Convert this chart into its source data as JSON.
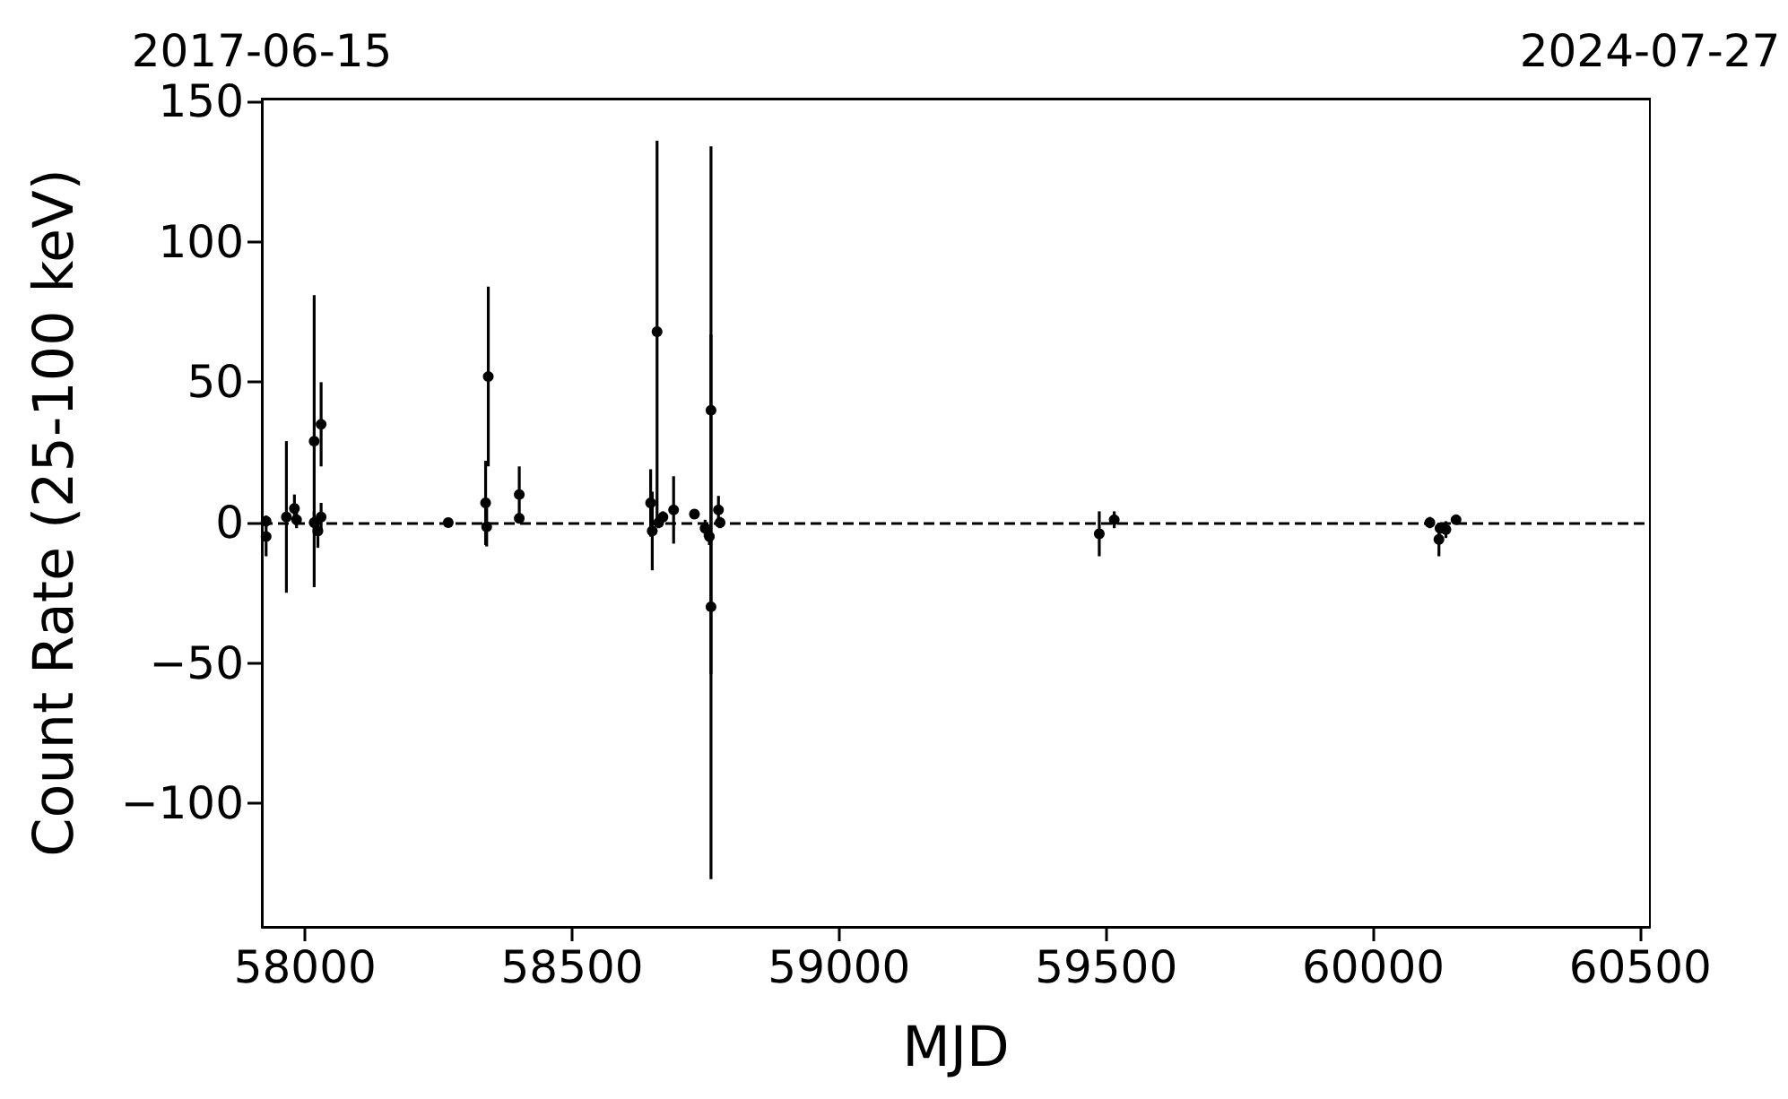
{
  "chart_data": {
    "type": "scatter",
    "xlabel": "MJD",
    "ylabel": "Count Rate (25-100 keV)",
    "xlim": [
      57919,
      60518
    ],
    "xticks": [
      58000,
      58500,
      59000,
      59500,
      60000,
      60500
    ],
    "x2lim": [
      "2017-06-15",
      "2024-07-27"
    ],
    "x2ticks": [
      "2017-06-15",
      "2024-07-27"
    ],
    "ylim": [
      -144,
      151
    ],
    "yticks": [
      {
        "value": -100,
        "label": "−100"
      },
      {
        "value": -50,
        "label": "−50"
      },
      0,
      50,
      100,
      150
    ],
    "grid": false,
    "marker": "circle",
    "ref_lines": [
      {
        "axis": "y",
        "value": 0,
        "color": "#000000",
        "line_style": "dashed"
      }
    ],
    "series": [
      {
        "color": "#000000",
        "x": [
          57927,
          57927,
          57965,
          57980,
          57984,
          58017,
          58030,
          58017,
          58024,
          58030,
          58268,
          58343,
          58338,
          58340,
          58401,
          58401,
          58659,
          58647,
          58650,
          58662,
          58670,
          58690,
          58729,
          58760,
          58760,
          58749,
          58757,
          58774,
          58777,
          59487,
          59515,
          60106,
          60123,
          60125,
          60136,
          60155
        ],
        "values": [
          -5,
          0.5,
          2,
          5,
          1,
          0,
          2,
          29,
          -3,
          35,
          0,
          52,
          7,
          -1.5,
          10,
          1.5,
          68,
          7,
          -3,
          0,
          2,
          4.5,
          3,
          40,
          -30,
          -2,
          -5,
          4.5,
          0,
          -4,
          1,
          0,
          -6,
          -2,
          -2.5,
          1
        ],
        "errors": [
          7,
          2,
          27,
          5,
          3,
          4,
          5,
          52,
          6,
          15,
          null,
          32,
          15,
          7,
          10,
          null,
          68,
          12,
          14,
          2,
          2,
          12,
          null,
          94,
          97,
          3,
          3,
          5,
          2,
          8,
          3,
          2,
          6,
          2,
          3,
          1
        ]
      }
    ]
  }
}
